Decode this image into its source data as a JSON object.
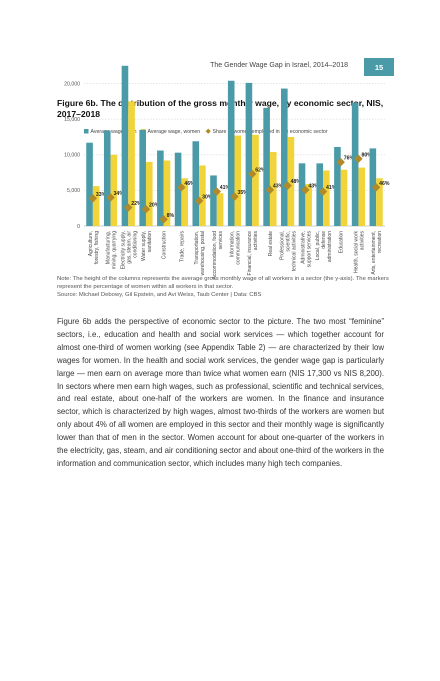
{
  "header": {
    "running_title": "The Gender Wage Gap in Israel, 2014–2018",
    "page_number": "15"
  },
  "figure": {
    "title": "Figure 6b. The distribution of the gross monthly wage, by economic sector, NIS, 2017–2018",
    "note": "Note: The height of the columns represents the average gross monthly wage of all workers in a sector (the y-axis). The markers represent the percentage of women within all workers in that sector.",
    "source": "Source: Michael Debowy, Gil Epstein, and Avi Weiss, Taub Center | Data: CBS"
  },
  "colors": {
    "men": "#4a9aa8",
    "women": "#f0d43a",
    "share_marker": "#b08a2a",
    "accent_badge": "#4a9aa8"
  },
  "chart_data": {
    "type": "bar",
    "categories": [
      "Agriculture, forestry, fishing",
      "Manufacturing, mining, quarrying",
      "Electricity supply, gas, steam, air conditioning",
      "Water supply, sanitation",
      "Construction",
      "Trade, repairs",
      "Transportation, warehousing, postal",
      "Accommodation, food services",
      "Information, communication",
      "Financial, insurance activities",
      "Real estate",
      "Professional, scientific, technical activities",
      "Administrative, support services",
      "Local, public, defense administration",
      "Education",
      "Health, social work activities",
      "Arts, entertainment, recreation"
    ],
    "series": [
      {
        "name": "Average wage, men",
        "values": [
          11700,
          13400,
          22500,
          13500,
          10600,
          10300,
          11900,
          7100,
          20400,
          20100,
          16600,
          19300,
          8800,
          8800,
          11100,
          17300,
          10900
        ]
      },
      {
        "name": "Average wage, women",
        "values": [
          5600,
          10000,
          17500,
          9000,
          9200,
          6700,
          8500,
          4600,
          12700,
          12800,
          10400,
          12500,
          5900,
          7800,
          7900,
          8200,
          6700
        ]
      },
      {
        "name": "Share of women employed in the economic sector",
        "values": [
          33,
          34,
          22,
          20,
          8,
          46,
          30,
          41,
          35,
          62,
          43,
          48,
          43,
          41,
          76,
          80,
          46
        ]
      }
    ],
    "share_labels": [
      "33%",
      "34%",
      "22%",
      "20%",
      "8%",
      "46%",
      "30%",
      "41%",
      "35%",
      "62%",
      "43%",
      "48%",
      "43%",
      "41%",
      "76%",
      "80%",
      "46%"
    ],
    "y_ticks": [
      "0",
      "5,000",
      "10,000",
      "15,000",
      "20,000"
    ],
    "ylim": [
      0,
      22500
    ],
    "share_ylim": [
      0,
      100
    ],
    "legend_position": "top-left",
    "grid": true
  },
  "body": {
    "paragraph": "Figure 6b adds the perspective of economic sector to the picture. The two most “feminine” sectors, i.e., education and health and social work services — which together account for almost one-third of women working (see Appendix Table 2) — are characterized by their low wages for women. In the health and social work services, the gender wage gap is particularly large — men earn on average more than twice what women earn (NIS 17,300 vs NIS 8,200). In sectors where men earn high wages, such as professional, scientific and technical services, and real estate, about one-half of the workers are women. In the finance and insurance sector, which is characterized by high wages, almost two-thirds of the workers are women but only about 4% of all women are employed in this sector and their monthly wage is significantly lower than that of men in the sector. Women account for about one-quarter of the workers in the electricity, gas, steam, and air conditioning sector and about one-third of the workers in the information and communication sector, which includes many high tech companies."
  }
}
